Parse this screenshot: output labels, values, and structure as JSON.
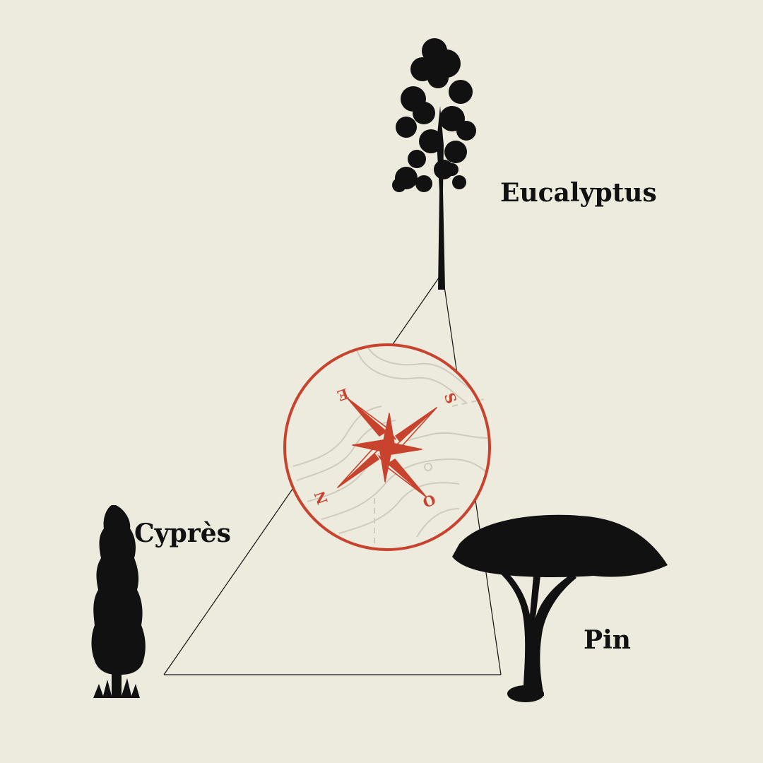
{
  "trees": {
    "eucalyptus": {
      "label": "Eucalyptus",
      "icon": "eucalyptus-tree-icon"
    },
    "cypres": {
      "label": "Cyprès",
      "icon": "cypress-tree-icon"
    },
    "pin": {
      "label": "Pin",
      "icon": "pine-tree-icon"
    }
  },
  "compass": {
    "icon": "compass-rose-icon",
    "letters": {
      "north": "N",
      "east": "E",
      "south": "S",
      "west": "O"
    }
  },
  "colors": {
    "background": "#EDEADE",
    "ink": "#111111",
    "accent": "#C8432D",
    "contour": "#CFCBBE"
  }
}
